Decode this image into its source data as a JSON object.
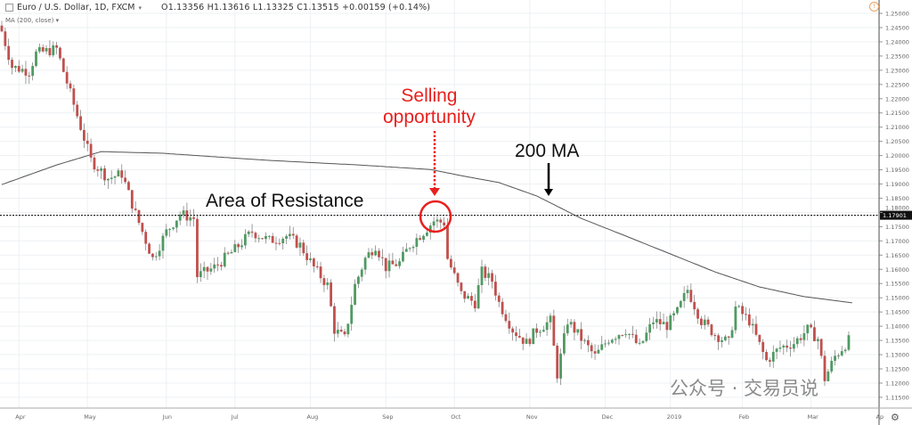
{
  "header": {
    "symbol": "Euro / U.S. Dollar, 1D, FXCM",
    "ohlc": "O1.13356  H1.13616  L1.13325  C1.13515  +0.00159 (+0.14%)",
    "indicator": "MA (200, close)"
  },
  "annotations": {
    "selling_line1": "Selling",
    "selling_line2": "opportunity",
    "ma_label": "200 MA",
    "resistance_label": "Area of Resistance"
  },
  "watermark": "公众号 · 交易员说",
  "colors": {
    "up": "#4f9a62",
    "down": "#c0504d",
    "ma": "#555555",
    "highlight": "#e8201e",
    "grid": "#eef0f3"
  },
  "chart_data": {
    "type": "candlestick",
    "title": "Euro / U.S. Dollar, 1D, FXCM",
    "ylim": [
      1.1125,
      1.2525
    ],
    "yticks": [
      "1.25000",
      "1.24500",
      "1.24000",
      "1.23500",
      "1.23000",
      "1.22500",
      "1.22000",
      "1.21500",
      "1.21000",
      "1.20500",
      "1.20000",
      "1.19500",
      "1.19000",
      "1.18500",
      "1.18000",
      "1.17500",
      "1.17000",
      "1.16500",
      "1.16000",
      "1.15500",
      "1.15000",
      "1.14500",
      "1.14000",
      "1.13500",
      "1.13000",
      "1.12500",
      "1.12000",
      "1.11500"
    ],
    "xticks": [
      {
        "label": "Apr",
        "day": 5
      },
      {
        "label": "May",
        "day": 25
      },
      {
        "label": "Jun",
        "day": 48
      },
      {
        "label": "Jul",
        "day": 68
      },
      {
        "label": "Aug",
        "day": 90
      },
      {
        "label": "Sep",
        "day": 112
      },
      {
        "label": "Oct",
        "day": 132
      },
      {
        "label": "Nov",
        "day": 154
      },
      {
        "label": "Dec",
        "day": 176
      },
      {
        "label": "2019",
        "day": 195
      },
      {
        "label": "Feb",
        "day": 216
      },
      {
        "label": "Mar",
        "day": 236
      },
      {
        "label": "Ap",
        "day": 256
      }
    ],
    "resistance_level": 1.17901,
    "resistance_label": "1.17901",
    "close_anchors": [
      [
        0,
        1.2437
      ],
      [
        3,
        1.2312
      ],
      [
        8,
        1.2296
      ],
      [
        10,
        1.2359
      ],
      [
        16,
        1.2375
      ],
      [
        18,
        1.2296
      ],
      [
        22,
        1.214
      ],
      [
        26,
        1.1983
      ],
      [
        31,
        1.192
      ],
      [
        35,
        1.1936
      ],
      [
        39,
        1.1795
      ],
      [
        44,
        1.1638
      ],
      [
        48,
        1.1732
      ],
      [
        52,
        1.1795
      ],
      [
        56,
        1.1779
      ],
      [
        57,
        1.1576
      ],
      [
        62,
        1.1607
      ],
      [
        68,
        1.167
      ],
      [
        73,
        1.1732
      ],
      [
        78,
        1.1701
      ],
      [
        83,
        1.1717
      ],
      [
        87,
        1.1685
      ],
      [
        91,
        1.1607
      ],
      [
        95,
        1.1544
      ],
      [
        97,
        1.1388
      ],
      [
        100,
        1.1356
      ],
      [
        103,
        1.1544
      ],
      [
        106,
        1.1638
      ],
      [
        109,
        1.1685
      ],
      [
        112,
        1.1607
      ],
      [
        116,
        1.1623
      ],
      [
        119,
        1.1685
      ],
      [
        123,
        1.1732
      ],
      [
        126,
        1.177
      ],
      [
        129,
        1.1764
      ],
      [
        130,
        1.1638
      ],
      [
        134,
        1.1513
      ],
      [
        138,
        1.1482
      ],
      [
        140,
        1.1591
      ],
      [
        143,
        1.156
      ],
      [
        145,
        1.1482
      ],
      [
        149,
        1.1388
      ],
      [
        153,
        1.1341
      ],
      [
        156,
        1.1388
      ],
      [
        160,
        1.1419
      ],
      [
        162,
        1.1231
      ],
      [
        165,
        1.1419
      ],
      [
        169,
        1.1356
      ],
      [
        173,
        1.1294
      ],
      [
        177,
        1.1356
      ],
      [
        182,
        1.1388
      ],
      [
        186,
        1.1325
      ],
      [
        190,
        1.1419
      ],
      [
        194,
        1.1403
      ],
      [
        197,
        1.145
      ],
      [
        200,
        1.1529
      ],
      [
        204,
        1.1419
      ],
      [
        208,
        1.1372
      ],
      [
        212,
        1.1341
      ],
      [
        214,
        1.1466
      ],
      [
        218,
        1.1419
      ],
      [
        223,
        1.1278
      ],
      [
        227,
        1.1325
      ],
      [
        231,
        1.1341
      ],
      [
        235,
        1.1388
      ],
      [
        238,
        1.1356
      ],
      [
        240,
        1.1215
      ],
      [
        243,
        1.1294
      ],
      [
        247,
        1.135
      ]
    ],
    "ma200_anchors": [
      [
        0,
        1.1898
      ],
      [
        16,
        1.1967
      ],
      [
        29,
        1.2014
      ],
      [
        47,
        1.2008
      ],
      [
        78,
        1.1983
      ],
      [
        104,
        1.1967
      ],
      [
        125,
        1.1951
      ],
      [
        135,
        1.1927
      ],
      [
        145,
        1.1905
      ],
      [
        156,
        1.1858
      ],
      [
        169,
        1.1779
      ],
      [
        182,
        1.1717
      ],
      [
        195,
        1.1654
      ],
      [
        208,
        1.1591
      ],
      [
        221,
        1.1538
      ],
      [
        234,
        1.1504
      ],
      [
        248,
        1.1482
      ]
    ]
  }
}
